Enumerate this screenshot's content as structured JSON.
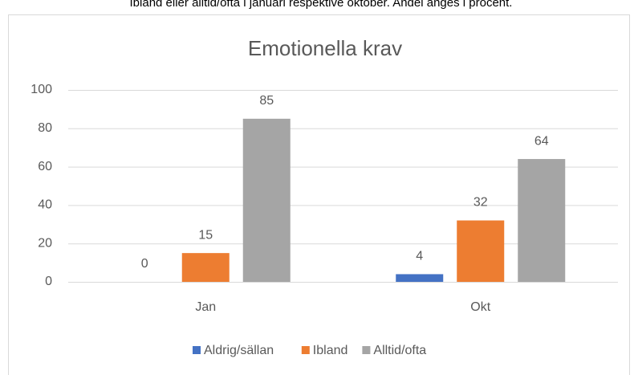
{
  "caption": "Ibland eller alltid/ofta i januari respektive oktober. Andel anges i procent.",
  "chart_data": {
    "type": "bar",
    "title": "Emotionella krav",
    "categories": [
      "Jan",
      "Okt"
    ],
    "series": [
      {
        "name": "Aldrig/sällan",
        "color": "#4472c4",
        "values": [
          0,
          4
        ]
      },
      {
        "name": "Ibland",
        "color": "#ed7d31",
        "values": [
          15,
          32
        ]
      },
      {
        "name": "Alltid/ofta",
        "color": "#a5a5a5",
        "values": [
          85,
          64
        ]
      }
    ],
    "ylim": [
      0,
      100
    ],
    "yticks": [
      0,
      20,
      40,
      60,
      80,
      100
    ],
    "grid": true,
    "legend": "bottom"
  }
}
